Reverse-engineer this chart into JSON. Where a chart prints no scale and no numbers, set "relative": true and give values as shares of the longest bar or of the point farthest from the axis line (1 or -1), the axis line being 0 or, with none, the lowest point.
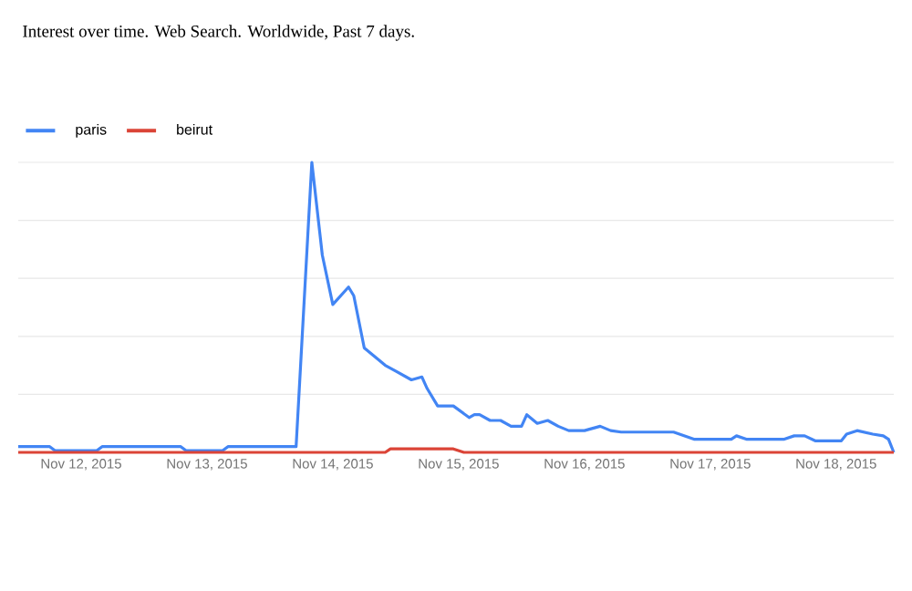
{
  "chart_data": {
    "type": "line",
    "title": "Interest over time. Web Search. Worldwide, Past 7 days.",
    "relative": true,
    "grid": "y",
    "legend": "top left",
    "line_style": "solid",
    "marker": "none",
    "xlim": [
      "2015-11-11T12:00",
      "2015-11-18T11:00"
    ],
    "xticks": [
      {
        "value": "2015-11-12",
        "label": "Nov 12, 2015"
      },
      {
        "value": "2015-11-13",
        "label": "Nov 13, 2015"
      },
      {
        "value": "2015-11-14",
        "label": "Nov 14, 2015"
      },
      {
        "value": "2015-11-15",
        "label": "Nov 15, 2015"
      },
      {
        "value": "2015-11-16",
        "label": "Nov 16, 2015"
      },
      {
        "value": "2015-11-17",
        "label": "Nov 17, 2015"
      },
      {
        "value": "2015-11-18",
        "label": "Nov 18, 2015"
      }
    ],
    "series": [
      {
        "name": "paris",
        "color": "#4285f4",
        "x": [
          "2015-11-11T12:00",
          "2015-11-11T18:00",
          "2015-11-11T19:00",
          "2015-11-12T03:00",
          "2015-11-12T04:00",
          "2015-11-12T19:00",
          "2015-11-12T20:00",
          "2015-11-13T03:00",
          "2015-11-13T04:00",
          "2015-11-13T15:00",
          "2015-11-13T17:00",
          "2015-11-13T20:00",
          "2015-11-13T22:00",
          "2015-11-14T00:00",
          "2015-11-14T03:00",
          "2015-11-14T04:00",
          "2015-11-14T06:00",
          "2015-11-14T10:00",
          "2015-11-14T12:00",
          "2015-11-14T15:00",
          "2015-11-14T17:00",
          "2015-11-14T18:00",
          "2015-11-14T20:00",
          "2015-11-14T23:00",
          "2015-11-15T02:00",
          "2015-11-15T03:00",
          "2015-11-15T04:00",
          "2015-11-15T06:00",
          "2015-11-15T08:00",
          "2015-11-15T10:00",
          "2015-11-15T12:00",
          "2015-11-15T13:00",
          "2015-11-15T15:00",
          "2015-11-15T17:00",
          "2015-11-15T19:00",
          "2015-11-15T21:00",
          "2015-11-16T00:00",
          "2015-11-16T03:00",
          "2015-11-16T05:00",
          "2015-11-16T07:00",
          "2015-11-16T17:00",
          "2015-11-16T21:00",
          "2015-11-17T04:00",
          "2015-11-17T05:00",
          "2015-11-17T07:00",
          "2015-11-17T14:00",
          "2015-11-17T16:00",
          "2015-11-17T18:00",
          "2015-11-17T20:00",
          "2015-11-18T01:00",
          "2015-11-18T02:00",
          "2015-11-18T04:00",
          "2015-11-18T07:00",
          "2015-11-18T09:00",
          "2015-11-18T10:00",
          "2015-11-18T11:00"
        ],
        "values": [
          0.02,
          0.02,
          0.006,
          0.006,
          0.02,
          0.02,
          0.006,
          0.006,
          0.02,
          0.02,
          0.02,
          1,
          0.68,
          0.51,
          0.57,
          0.54,
          0.36,
          0.3,
          0.28,
          0.25,
          0.26,
          0.22,
          0.16,
          0.16,
          0.12,
          0.13,
          0.13,
          0.11,
          0.11,
          0.09,
          0.09,
          0.13,
          0.1,
          0.11,
          0.09,
          0.075,
          0.075,
          0.09,
          0.075,
          0.07,
          0.07,
          0.045,
          0.045,
          0.057,
          0.045,
          0.045,
          0.057,
          0.057,
          0.04,
          0.04,
          0.063,
          0.075,
          0.063,
          0.057,
          0.045,
          0
        ]
      },
      {
        "name": "beirut",
        "color": "#db4437",
        "x": [
          "2015-11-11T12:00",
          "2015-11-14T10:00",
          "2015-11-14T11:00",
          "2015-11-14T23:00",
          "2015-11-15T01:00",
          "2015-11-18T11:00"
        ],
        "values": [
          0,
          0,
          0.012,
          0.012,
          0,
          0
        ]
      }
    ]
  }
}
